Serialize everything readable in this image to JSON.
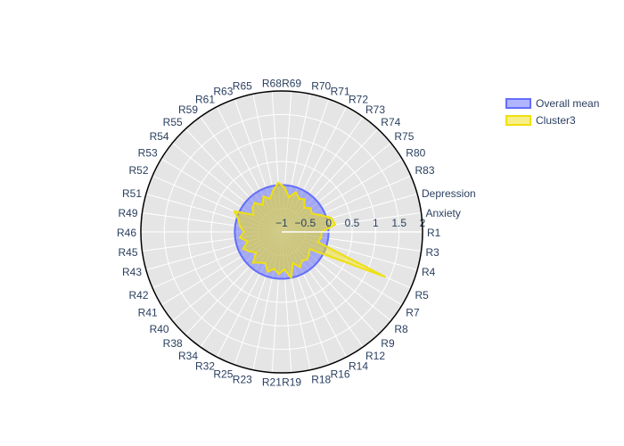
{
  "chart_data": {
    "type": "radar",
    "title": "",
    "theta": [
      "R1",
      "Anxiety",
      "Depression",
      "R83",
      "R80",
      "R75",
      "R74",
      "R73",
      "R72",
      "R71",
      "R70",
      "R69",
      "R68",
      "R65",
      "R63",
      "R61",
      "R59",
      "R55",
      "R54",
      "R53",
      "R52",
      "R51",
      "R49",
      "R46",
      "R45",
      "R43",
      "R42",
      "R41",
      "R40",
      "R38",
      "R34",
      "R32",
      "R25",
      "R23",
      "R21",
      "R19",
      "R18",
      "R16",
      "R14",
      "R12",
      "R9",
      "R8",
      "R7",
      "R5",
      "R4",
      "R3"
    ],
    "radial_axis": {
      "range": [
        -1,
        2
      ],
      "ticks": [
        -1,
        -0.5,
        0,
        0.5,
        1,
        1.5,
        2
      ],
      "tick_labels": [
        "−1",
        "−0.5",
        "0",
        "0.5",
        "1",
        "1.5",
        "2"
      ]
    },
    "legend": {
      "placement": "top-right"
    },
    "series": [
      {
        "name": "Overall mean",
        "color": "#636efa",
        "fill": "rgba(99,110,250,0.5)",
        "values": [
          0,
          0,
          0,
          0,
          0,
          0,
          0,
          0,
          0,
          0,
          0,
          0,
          0,
          0,
          0,
          0,
          0,
          0,
          0,
          0,
          0,
          0,
          0,
          0,
          0,
          0,
          0,
          0,
          0,
          0,
          0,
          0,
          0,
          0,
          0,
          0,
          0,
          0,
          0,
          0,
          0,
          0,
          0,
          0,
          0,
          0
        ]
      },
      {
        "name": "Cluster3",
        "color": "#f0e010",
        "fill": "rgba(240,224,16,0.5)",
        "values": [
          -0.15,
          0.15,
          0.1,
          -0.1,
          -0.25,
          -0.2,
          -0.3,
          -0.15,
          -0.2,
          -0.1,
          -0.25,
          -0.05,
          0.05,
          -0.1,
          -0.25,
          -0.15,
          -0.3,
          -0.15,
          -0.2,
          -0.3,
          0.1,
          -0.05,
          -0.1,
          -0.2,
          -0.1,
          -0.25,
          -0.1,
          -0.2,
          -0.3,
          -0.1,
          -0.2,
          -0.25,
          -0.1,
          -0.2,
          -0.1,
          -0.2,
          0.0,
          -0.3,
          -0.15,
          -0.25,
          -0.2,
          -0.25,
          -0.3,
          1.4,
          -0.2,
          -0.15
        ]
      }
    ]
  }
}
